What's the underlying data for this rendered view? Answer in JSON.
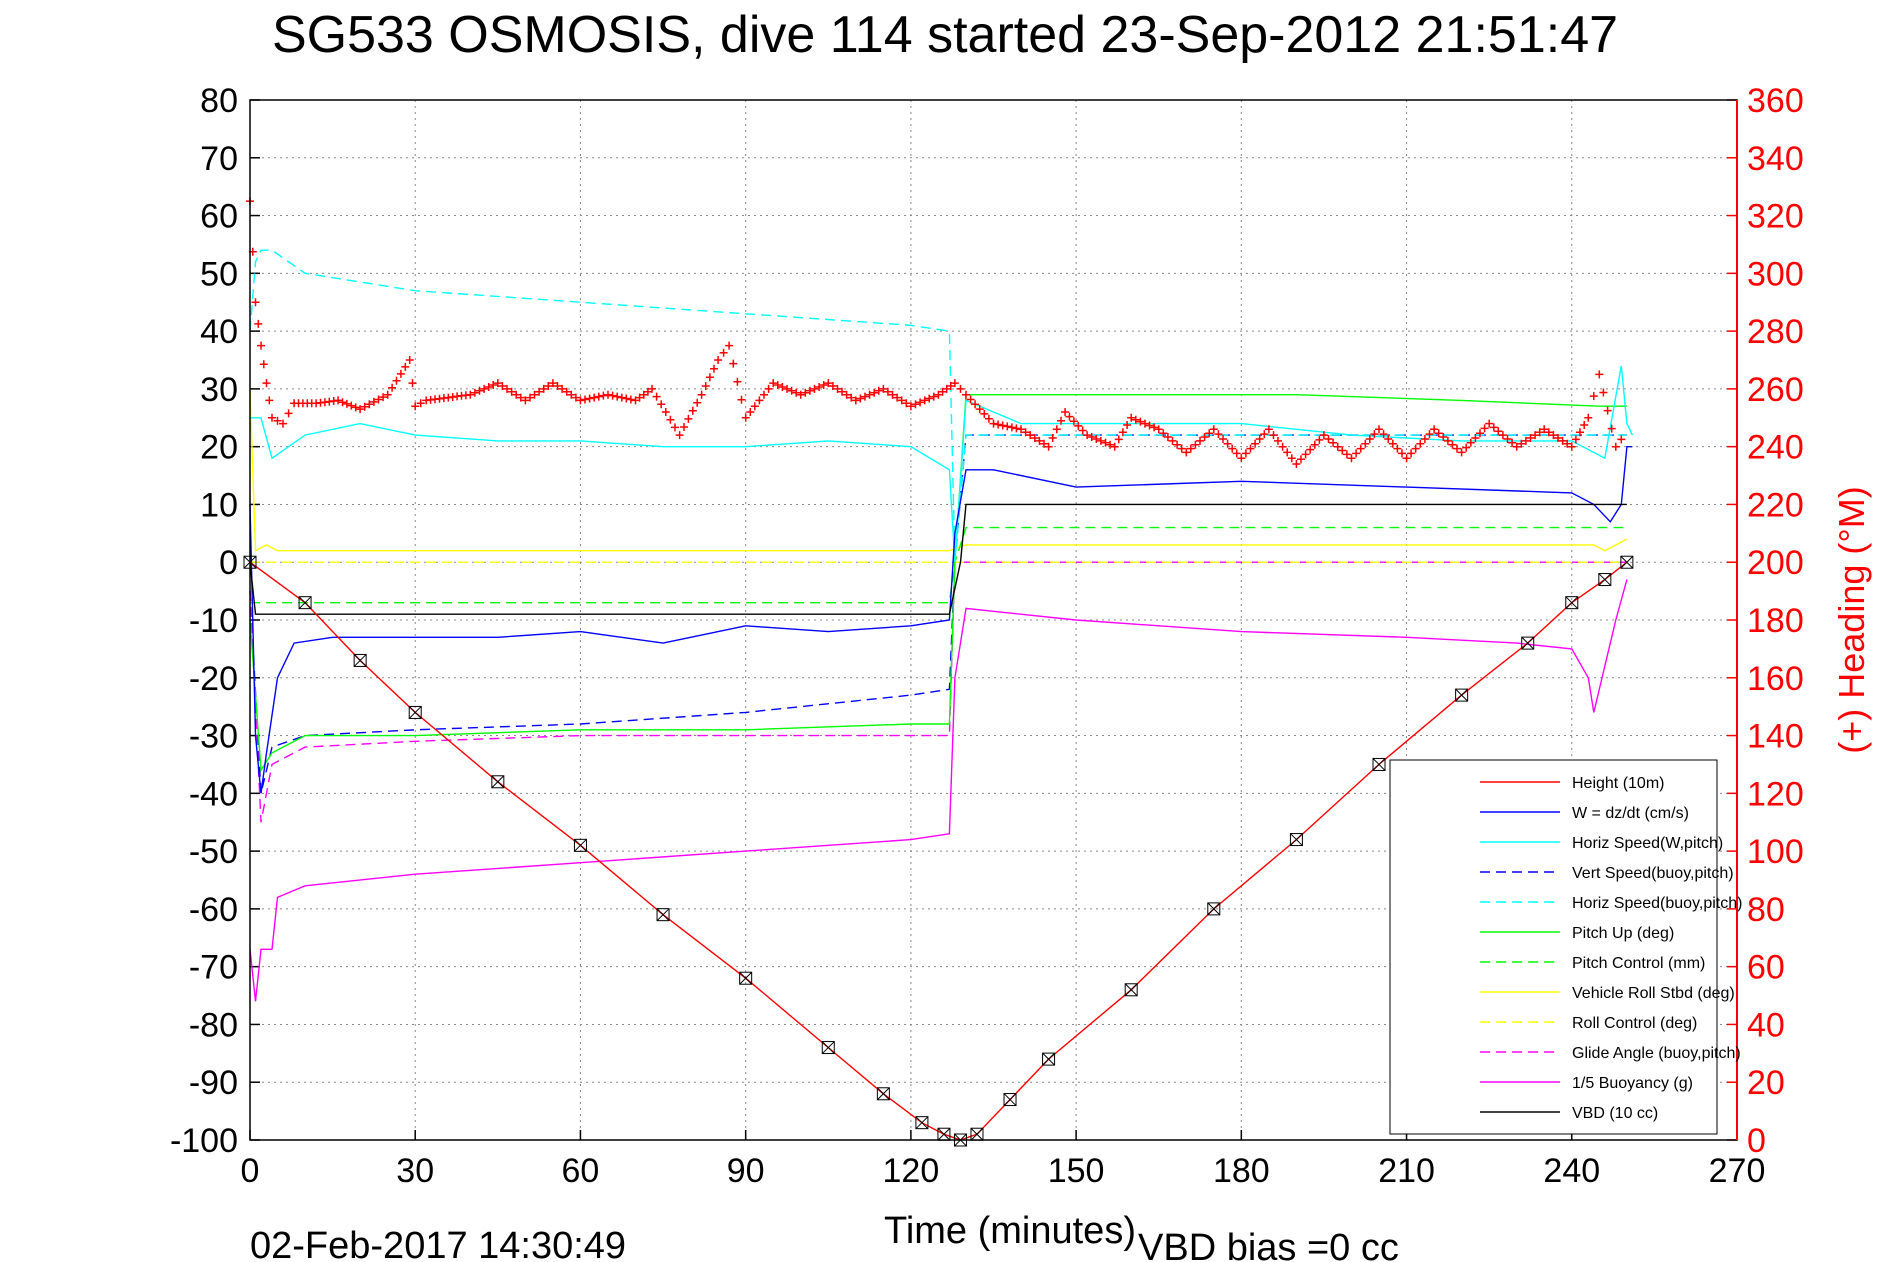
{
  "chart_data": {
    "type": "line",
    "title": "SG533 OSMOSIS, dive 114 started 23-Sep-2012 21:51:47",
    "xlabel": "Time (minutes)",
    "ylabel_right": "(+) Heading (°M)",
    "xlim": [
      0,
      270
    ],
    "ylim": [
      -100,
      80
    ],
    "ylim_right": [
      0,
      360
    ],
    "x_ticks": [
      "0",
      "30",
      "60",
      "90",
      "120",
      "150",
      "180",
      "210",
      "240",
      "270"
    ],
    "y_ticks": [
      "80",
      "70",
      "60",
      "50",
      "40",
      "30",
      "20",
      "10",
      "0",
      "-10",
      "-20",
      "-30",
      "-40",
      "-50",
      "-60",
      "-70",
      "-80",
      "-90",
      "-100"
    ],
    "y_right_ticks": [
      "360",
      "340",
      "320",
      "300",
      "280",
      "260",
      "240",
      "220",
      "200",
      "180",
      "160",
      "140",
      "120",
      "100",
      "80",
      "60",
      "40",
      "20",
      "0"
    ],
    "grid": true,
    "legend_position": "lower-right",
    "footer_left": "02-Feb-2017 14:30:49",
    "footer_right": "VBD bias =0 cc",
    "series": [
      {
        "name": "Height (10m)",
        "color": "#ff0000",
        "style": "solid",
        "x": [
          0,
          10,
          20,
          30,
          45,
          60,
          75,
          90,
          105,
          115,
          122,
          126,
          129,
          132,
          138,
          145,
          160,
          175,
          190,
          205,
          220,
          232,
          240,
          246,
          250
        ],
        "y": [
          0,
          -7,
          -17,
          -26,
          -38,
          -49,
          -61,
          -72,
          -84,
          -92,
          -97,
          -99,
          -100,
          -99,
          -93,
          -86,
          -74,
          -60,
          -48,
          -35,
          -23,
          -14,
          -7,
          -3,
          0
        ]
      },
      {
        "name": "W = dz/dt (cm/s)",
        "color": "#0000ff",
        "style": "solid",
        "x": [
          0,
          1,
          2,
          3,
          5,
          8,
          15,
          30,
          45,
          60,
          75,
          90,
          105,
          120,
          127,
          128,
          130,
          135,
          150,
          180,
          210,
          240,
          244,
          247,
          249,
          250,
          251
        ],
        "y": [
          10,
          -30,
          -40,
          -33,
          -20,
          -14,
          -13,
          -13,
          -13,
          -12,
          -14,
          -11,
          -12,
          -11,
          -10,
          5,
          16,
          16,
          13,
          14,
          13,
          12,
          10,
          7,
          10,
          20,
          20
        ]
      },
      {
        "name": "Horiz Speed(W,pitch)",
        "color": "#00ffff",
        "style": "solid",
        "x": [
          0,
          2,
          4,
          10,
          20,
          30,
          45,
          60,
          75,
          90,
          105,
          120,
          127,
          128,
          130,
          140,
          160,
          180,
          200,
          220,
          240,
          246,
          249,
          250,
          251
        ],
        "y": [
          25,
          25,
          18,
          22,
          24,
          22,
          21,
          21,
          20,
          20,
          21,
          20,
          16,
          0,
          28,
          24,
          24,
          24,
          22,
          21,
          21,
          18,
          34,
          24,
          22
        ]
      },
      {
        "name": "Vert Speed(buoy,pitch)",
        "color": "#0000ff",
        "style": "dashed",
        "x": [
          0,
          2,
          4,
          10,
          30,
          60,
          90,
          120,
          127,
          128,
          130,
          250
        ],
        "y": [
          -5,
          -40,
          -32,
          -30,
          -29,
          -28,
          -26,
          -23,
          -22,
          0,
          22,
          22
        ]
      },
      {
        "name": "Horiz Speed(buoy,pitch)",
        "color": "#00ffff",
        "style": "dashed",
        "x": [
          0,
          1,
          2,
          4,
          10,
          30,
          60,
          90,
          120,
          127,
          128,
          130,
          250
        ],
        "y": [
          40,
          52,
          54,
          54,
          50,
          47,
          45,
          43,
          41,
          40,
          0,
          22,
          22
        ]
      },
      {
        "name": "Pitch Up (deg)",
        "color": "#00ff00",
        "style": "solid",
        "x": [
          0,
          2,
          4,
          10,
          30,
          60,
          90,
          120,
          127,
          128,
          130,
          160,
          190,
          220,
          245,
          250
        ],
        "y": [
          -10,
          -36,
          -33,
          -30,
          -30,
          -29,
          -29,
          -28,
          -28,
          0,
          29,
          29,
          29,
          28,
          27,
          27
        ]
      },
      {
        "name": "Pitch Control (mm)",
        "color": "#00ff00",
        "style": "dashed",
        "x": [
          0,
          2,
          127,
          128,
          130,
          250
        ],
        "y": [
          -7,
          -7,
          -7,
          0,
          6,
          6
        ]
      },
      {
        "name": "Vehicle Roll Stbd (deg)",
        "color": "#ffff00",
        "style": "solid",
        "x": [
          0,
          1,
          3,
          5,
          15,
          30,
          45,
          60,
          75,
          90,
          105,
          120,
          127,
          130,
          160,
          190,
          220,
          240,
          244,
          246,
          250
        ],
        "y": [
          30,
          2,
          3,
          2,
          2,
          2,
          2,
          2,
          2,
          2,
          2,
          2,
          2,
          3,
          3,
          3,
          3,
          3,
          3,
          2,
          4
        ]
      },
      {
        "name": "Roll Control (deg)",
        "color": "#ffff00",
        "style": "dashed",
        "x": [
          0,
          250
        ],
        "y": [
          0,
          0
        ]
      },
      {
        "name": "Glide Angle (buoy,pitch)",
        "color": "#ff00ff",
        "style": "dashed",
        "x": [
          0,
          2,
          4,
          10,
          30,
          60,
          90,
          120,
          127,
          128,
          130,
          250
        ],
        "y": [
          -5,
          -45,
          -35,
          -32,
          -31,
          -30,
          -30,
          -30,
          -30,
          0,
          0,
          0
        ]
      },
      {
        "name": "1/5 Buoyancy (g)",
        "color": "#ff00ff",
        "style": "solid",
        "x": [
          0,
          1,
          2,
          4,
          5,
          10,
          30,
          60,
          90,
          120,
          127,
          128,
          130,
          150,
          180,
          210,
          230,
          240,
          243,
          244,
          246,
          248,
          250
        ],
        "y": [
          -67,
          -76,
          -67,
          -67,
          -58,
          -56,
          -54,
          -52,
          -50,
          -48,
          -47,
          -20,
          -8,
          -10,
          -12,
          -13,
          -14,
          -15,
          -20,
          -26,
          -18,
          -10,
          -3
        ]
      },
      {
        "name": "VBD (10 cc)",
        "color": "#000000",
        "style": "solid",
        "x": [
          0,
          1,
          2,
          127,
          129,
          130,
          250
        ],
        "y": [
          0,
          -9,
          -9,
          -9,
          0,
          10,
          10
        ]
      }
    ],
    "heading": {
      "name": "(+) Heading",
      "color": "#ff0000",
      "x": [
        0,
        1,
        2,
        3,
        4,
        6,
        8,
        12,
        16,
        20,
        25,
        29,
        30,
        32,
        36,
        40,
        45,
        50,
        55,
        60,
        65,
        70,
        73,
        78,
        82,
        85,
        87,
        90,
        95,
        100,
        105,
        110,
        115,
        120,
        125,
        128,
        130,
        135,
        140,
        145,
        148,
        152,
        157,
        160,
        165,
        170,
        175,
        180,
        185,
        190,
        195,
        200,
        205,
        210,
        215,
        220,
        225,
        230,
        235,
        240,
        243,
        245,
        248,
        250
      ],
      "y": [
        325,
        290,
        275,
        262,
        250,
        248,
        255,
        255,
        256,
        253,
        258,
        270,
        254,
        256,
        257,
        258,
        262,
        256,
        262,
        256,
        258,
        256,
        260,
        244,
        258,
        270,
        275,
        250,
        262,
        258,
        262,
        256,
        260,
        254,
        258,
        262,
        258,
        248,
        246,
        240,
        252,
        244,
        240,
        250,
        246,
        238,
        246,
        236,
        246,
        234,
        244,
        236,
        246,
        236,
        246,
        238,
        248,
        240,
        246,
        240,
        250,
        265,
        240,
        245
      ]
    }
  }
}
